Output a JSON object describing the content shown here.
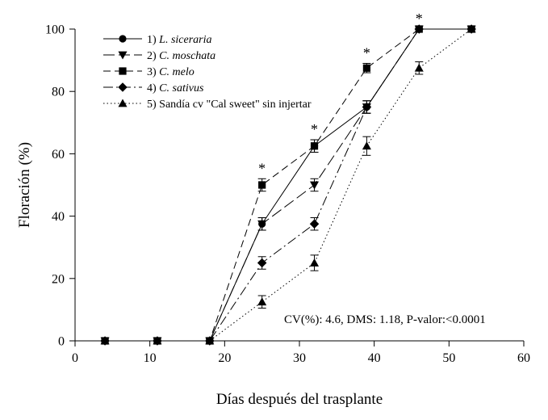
{
  "chart_data": {
    "type": "line",
    "xlabel": "Días después del trasplante",
    "ylabel": "Floración  (%)",
    "xlim": [
      0,
      60
    ],
    "ylim": [
      0,
      100
    ],
    "xticks": [
      0,
      10,
      20,
      30,
      40,
      50,
      60
    ],
    "yticks": [
      0,
      20,
      40,
      60,
      80,
      100
    ],
    "grid": false,
    "legend_position": "top-left",
    "annotation": "CV(%): 4.6, DMS: 1.18, P-valor:<0.0001",
    "x": [
      4,
      11,
      18,
      25,
      32,
      39,
      46,
      53
    ],
    "significance_marker": "*",
    "significance_x": [
      25,
      32,
      39,
      46
    ],
    "series": [
      {
        "number": "1)",
        "name": "L. siceraria",
        "name_italic": true,
        "marker": "circle",
        "line_style": "solid",
        "values": [
          0,
          0,
          0,
          37.5,
          62.5,
          75,
          100,
          100
        ],
        "errors": [
          0,
          0,
          0,
          2,
          2,
          2,
          0,
          0
        ]
      },
      {
        "number": "2)",
        "name": "C. moschata",
        "name_italic": true,
        "marker": "triangle-down",
        "line_style": "long-dash",
        "values": [
          0,
          0,
          0,
          37.5,
          50,
          75,
          100,
          100
        ],
        "errors": [
          0,
          0,
          0,
          2,
          2,
          2,
          0,
          0
        ]
      },
      {
        "number": "3)",
        "name": "C. melo",
        "name_italic": true,
        "marker": "square",
        "line_style": "medium-dash",
        "values": [
          0,
          0,
          0,
          50,
          62.5,
          87.5,
          100,
          100
        ],
        "errors": [
          0,
          0,
          0,
          2,
          2,
          1.5,
          0,
          0
        ]
      },
      {
        "number": "4)",
        "name": "C. sativus",
        "name_italic": true,
        "marker": "diamond",
        "line_style": "dash-dot",
        "values": [
          0,
          0,
          0,
          25,
          37.5,
          75,
          100,
          100
        ],
        "errors": [
          0,
          0,
          0,
          2,
          2,
          2,
          0,
          0
        ]
      },
      {
        "number": "5)",
        "name": "Sandía cv \"Cal sweet\" sin injertar",
        "name_italic": false,
        "marker": "triangle-up",
        "line_style": "dotted",
        "values": [
          0,
          0,
          0,
          12.5,
          25,
          62.5,
          87.5,
          100
        ],
        "errors": [
          0,
          0,
          0,
          2,
          2.5,
          3,
          2,
          0
        ]
      }
    ]
  }
}
